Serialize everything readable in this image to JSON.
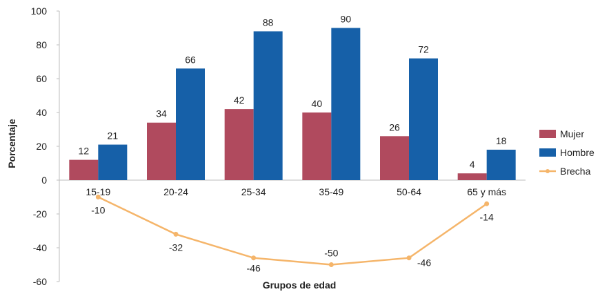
{
  "chart_data": {
    "type": "bar",
    "categories": [
      "15-19",
      "20-24",
      "25-34",
      "35-49",
      "50-64",
      "65 y más"
    ],
    "series": [
      {
        "name": "Mujer",
        "type": "bar",
        "values": [
          12,
          34,
          42,
          40,
          26,
          4
        ],
        "color": "#b04a5e"
      },
      {
        "name": "Hombre",
        "type": "bar",
        "values": [
          21,
          66,
          88,
          90,
          72,
          18
        ],
        "color": "#1660a8"
      },
      {
        "name": "Brecha",
        "type": "line",
        "values": [
          -10,
          -32,
          -46,
          -50,
          -46,
          -14
        ],
        "color": "#f5b56a"
      }
    ],
    "xlabel": "Grupos de edad",
    "ylabel": "Porcentaje",
    "ylim": [
      -60,
      100
    ],
    "yticks": [
      100,
      80,
      60,
      40,
      20,
      0,
      -20,
      -40,
      -60
    ],
    "grid": false,
    "legend_position": "right"
  }
}
